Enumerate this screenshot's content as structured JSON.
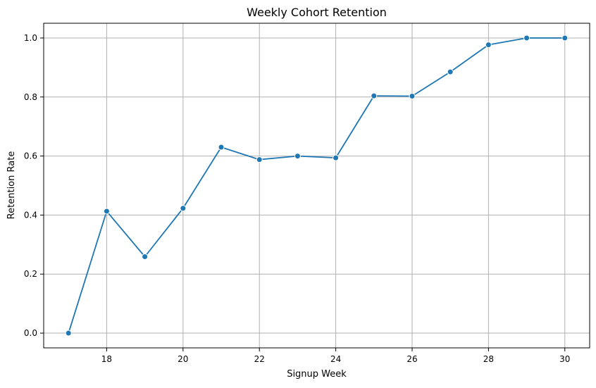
{
  "chart_data": {
    "type": "line",
    "title": "Weekly Cohort Retention",
    "xlabel": "Signup Week",
    "ylabel": "Retention Rate",
    "x": [
      17,
      18,
      19,
      20,
      21,
      22,
      23,
      24,
      25,
      26,
      27,
      28,
      29,
      30
    ],
    "series": [
      {
        "values": [
          0.0,
          0.413,
          0.259,
          0.423,
          0.63,
          0.588,
          0.6,
          0.594,
          0.804,
          0.803,
          0.885,
          0.977,
          1.0,
          1.0
        ],
        "color": "#1f77b4"
      }
    ],
    "xlim": [
      16.35,
      30.65
    ],
    "ylim": [
      -0.05,
      1.05
    ],
    "xticks": [
      18,
      20,
      22,
      24,
      26,
      28,
      30
    ],
    "xtick_labels": [
      "18",
      "20",
      "22",
      "24",
      "26",
      "28",
      "30"
    ],
    "yticks": [
      0.0,
      0.2,
      0.4,
      0.6,
      0.8,
      1.0
    ],
    "ytick_labels": [
      "0.0",
      "0.2",
      "0.4",
      "0.6",
      "0.8",
      "1.0"
    ],
    "grid": true,
    "markers": true
  }
}
